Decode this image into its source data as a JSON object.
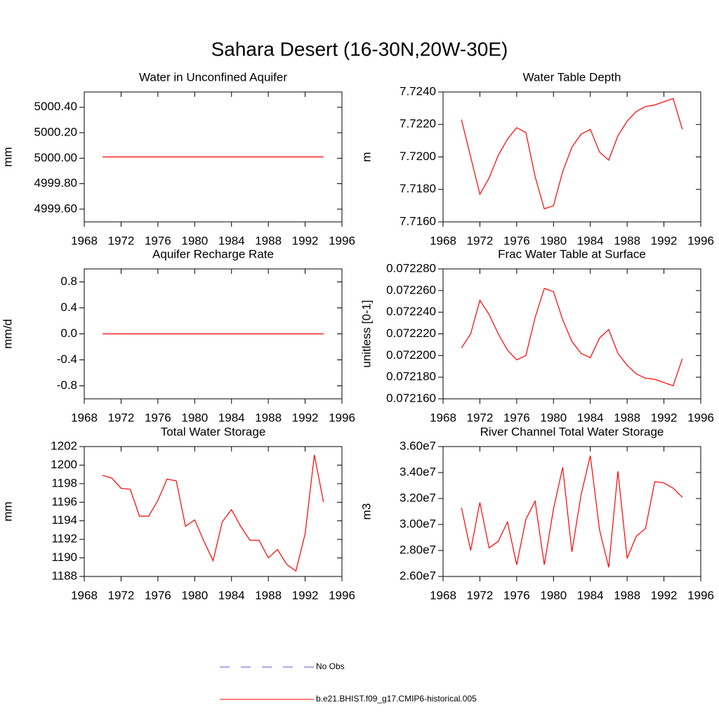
{
  "title": "Sahara Desert (16-30N,20W-30E)",
  "legend": [
    {
      "name": "No Obs",
      "color": "#5a5ad2",
      "dash": true
    },
    {
      "name": "b.e21.BHIST.f09_g17.CMIP6-historical.005",
      "color": "#ff0000",
      "dash": false
    }
  ],
  "chart_data": [
    {
      "type": "line",
      "title": "Water in Unconfined Aquifer",
      "ylabel": "mm",
      "color": "#ff0000",
      "x": [
        1970,
        1971,
        1972,
        1973,
        1974,
        1975,
        1976,
        1977,
        1978,
        1979,
        1980,
        1981,
        1982,
        1983,
        1984,
        1985,
        1986,
        1987,
        1988,
        1989,
        1990,
        1991,
        1992,
        1993,
        1994
      ],
      "values": [
        5000.01,
        5000.01,
        5000.01,
        5000.01,
        5000.01,
        5000.01,
        5000.01,
        5000.01,
        5000.01,
        5000.01,
        5000.01,
        5000.01,
        5000.01,
        5000.01,
        5000.01,
        5000.01,
        5000.01,
        5000.01,
        5000.01,
        5000.01,
        5000.01,
        5000.01,
        5000.01,
        5000.01,
        5000.01
      ],
      "xlim": [
        1968,
        1996
      ],
      "xticks": [
        1968,
        1972,
        1976,
        1980,
        1984,
        1988,
        1992,
        1996
      ],
      "ylim": [
        4999.5,
        5000.52
      ],
      "yticks": [
        {
          "value": 4999.6,
          "label": "4999.60"
        },
        {
          "value": 4999.8,
          "label": "4999.80"
        },
        {
          "value": 5000,
          "label": "5000.00"
        },
        {
          "value": 5000.2,
          "label": "5000.20"
        },
        {
          "value": 5000.4,
          "label": "5000.40"
        }
      ]
    },
    {
      "type": "line",
      "title": "Water Table Depth",
      "ylabel": "m",
      "color": "#ff0000",
      "x": [
        1970,
        1971,
        1972,
        1973,
        1974,
        1975,
        1976,
        1977,
        1978,
        1979,
        1980,
        1981,
        1982,
        1983,
        1984,
        1985,
        1986,
        1987,
        1988,
        1989,
        1990,
        1991,
        1992,
        1993,
        1994
      ],
      "values": [
        7.7223,
        7.72,
        7.7177,
        7.7187,
        7.7201,
        7.7211,
        7.7218,
        7.7215,
        7.7188,
        7.7168,
        7.717,
        7.7191,
        7.7206,
        7.7214,
        7.7217,
        7.7203,
        7.7198,
        7.7213,
        7.7222,
        7.7228,
        7.7231,
        7.7232,
        7.7234,
        7.7236,
        7.7217
      ],
      "xlim": [
        1968,
        1996
      ],
      "xticks": [
        1968,
        1972,
        1976,
        1980,
        1984,
        1988,
        1992,
        1996
      ],
      "ylim": [
        7.716,
        7.724
      ],
      "yticks": [
        {
          "value": 7.716,
          "label": "7.7160"
        },
        {
          "value": 7.718,
          "label": "7.7180"
        },
        {
          "value": 7.72,
          "label": "7.7200"
        },
        {
          "value": 7.722,
          "label": "7.7220"
        },
        {
          "value": 7.724,
          "label": "7.7240"
        }
      ]
    },
    {
      "type": "line",
      "title": "Aquifer Recharge Rate",
      "ylabel": "mm/d",
      "color": "#ff0000",
      "x": [
        1970,
        1971,
        1972,
        1973,
        1974,
        1975,
        1976,
        1977,
        1978,
        1979,
        1980,
        1981,
        1982,
        1983,
        1984,
        1985,
        1986,
        1987,
        1988,
        1989,
        1990,
        1991,
        1992,
        1993,
        1994
      ],
      "values": [
        0,
        0,
        0,
        0,
        0,
        0,
        0,
        0,
        0,
        0,
        0,
        0,
        0,
        0,
        0,
        0,
        0,
        0,
        0,
        0,
        0,
        0,
        0,
        0,
        0
      ],
      "xlim": [
        1968,
        1996
      ],
      "xticks": [
        1968,
        1972,
        1976,
        1980,
        1984,
        1988,
        1992,
        1996
      ],
      "ylim": [
        -1.0,
        1.0
      ],
      "yticks": [
        -0.8,
        -0.4,
        {
          "value": 0,
          "label": "0.0"
        },
        0.4,
        0.8
      ]
    },
    {
      "type": "line",
      "title": "Frac Water Table at Surface",
      "ylabel": "unitless [0-1]",
      "color": "#ff0000",
      "x": [
        1970,
        1971,
        1972,
        1973,
        1974,
        1975,
        1976,
        1977,
        1978,
        1979,
        1980,
        1981,
        1982,
        1983,
        1984,
        1985,
        1986,
        1987,
        1988,
        1989,
        1990,
        1991,
        1992,
        1993,
        1994
      ],
      "values": [
        0.072207,
        0.07222,
        0.072251,
        0.072238,
        0.07222,
        0.072205,
        0.072196,
        0.0722,
        0.072235,
        0.072262,
        0.072259,
        0.072233,
        0.072213,
        0.072202,
        0.072198,
        0.072216,
        0.072224,
        0.072202,
        0.072191,
        0.072183,
        0.072179,
        0.072178,
        0.072175,
        0.072172,
        0.072197
      ],
      "xlim": [
        1968,
        1996
      ],
      "xticks": [
        1968,
        1972,
        1976,
        1980,
        1984,
        1988,
        1992,
        1996
      ],
      "ylim": [
        0.07216,
        0.07228
      ],
      "yticks": [
        {
          "value": 0.07216,
          "label": "0.072160"
        },
        {
          "value": 0.07218,
          "label": "0.072180"
        },
        {
          "value": 0.0722,
          "label": "0.072200"
        },
        {
          "value": 0.07222,
          "label": "0.072220"
        },
        {
          "value": 0.07224,
          "label": "0.072240"
        },
        {
          "value": 0.07226,
          "label": "0.072260"
        },
        {
          "value": 0.07228,
          "label": "0.072280"
        }
      ]
    },
    {
      "type": "line",
      "title": "Total Water Storage",
      "ylabel": "mm",
      "color": "#ff0000",
      "x": [
        1970,
        1971,
        1972,
        1973,
        1974,
        1975,
        1976,
        1977,
        1978,
        1979,
        1980,
        1981,
        1982,
        1983,
        1984,
        1985,
        1986,
        1987,
        1988,
        1989,
        1990,
        1991,
        1992,
        1993,
        1994
      ],
      "values": [
        1198.9,
        1198.6,
        1197.5,
        1197.4,
        1194.5,
        1194.5,
        1196.2,
        1198.5,
        1198.3,
        1193.4,
        1194.1,
        1191.8,
        1189.7,
        1193.9,
        1195.2,
        1193.4,
        1191.9,
        1191.9,
        1190.0,
        1190.9,
        1189.3,
        1188.6,
        1192.6,
        1201.1,
        1196.0
      ],
      "xlim": [
        1968,
        1996
      ],
      "xticks": [
        1968,
        1972,
        1976,
        1980,
        1984,
        1988,
        1992,
        1996
      ],
      "ylim": [
        1188,
        1202
      ],
      "yticks": [
        1188,
        1190,
        1192,
        1194,
        1196,
        1198,
        1200,
        1202
      ]
    },
    {
      "type": "line",
      "title": "River Channel Total Water Storage",
      "ylabel": "m3",
      "color": "#ff0000",
      "x": [
        1970,
        1971,
        1972,
        1973,
        1974,
        1975,
        1976,
        1977,
        1978,
        1979,
        1980,
        1981,
        1982,
        1983,
        1984,
        1985,
        1986,
        1987,
        1988,
        1989,
        1990,
        1991,
        1992,
        1993,
        1994
      ],
      "values": [
        31300000,
        28000000,
        31700000,
        28200000,
        28700000,
        30200000,
        26900000,
        30400000,
        31800000,
        26900000,
        31200000,
        34400000,
        27900000,
        32300000,
        35300000,
        29600000,
        26700000,
        34100000,
        27400000,
        29100000,
        29700000,
        33300000,
        33200000,
        32800000,
        32100000
      ],
      "xlim": [
        1968,
        1996
      ],
      "xticks": [
        1968,
        1972,
        1976,
        1980,
        1984,
        1988,
        1992,
        1996
      ],
      "ylim": [
        26000000,
        36000000
      ],
      "yticks": [
        {
          "value": 26000000,
          "label": "2.60e7"
        },
        {
          "value": 28000000,
          "label": "2.80e7"
        },
        {
          "value": 30000000,
          "label": "3.00e7"
        },
        {
          "value": 32000000,
          "label": "3.20e7"
        },
        {
          "value": 34000000,
          "label": "3.40e7"
        },
        {
          "value": 36000000,
          "label": "3.60e7"
        }
      ]
    }
  ]
}
